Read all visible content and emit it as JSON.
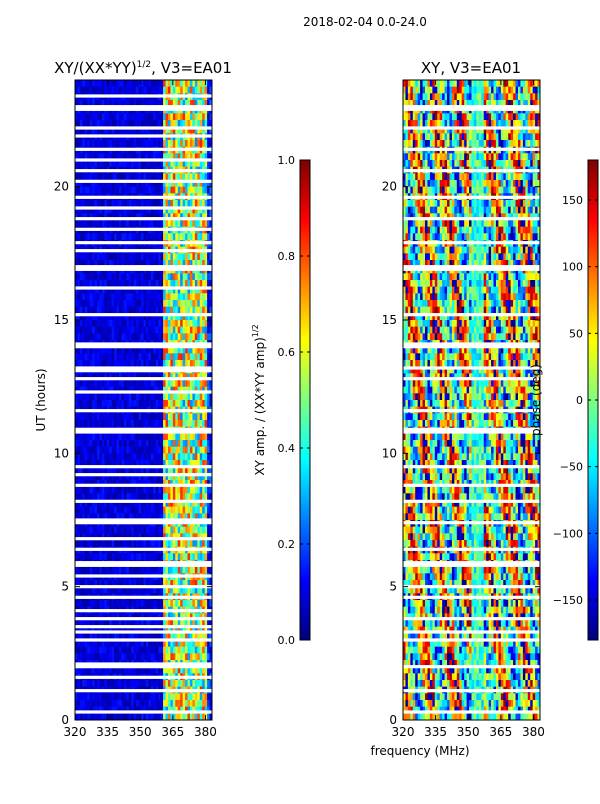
{
  "figure": {
    "suptitle": "2018-02-04 0.0-24.0",
    "shared_xlabel": "frequency (MHz)"
  },
  "colors": {
    "jet": [
      "#00007f",
      "#0000ff",
      "#007fff",
      "#00ffff",
      "#7fff7f",
      "#ffff00",
      "#ff7f00",
      "#ff0000",
      "#7f0000"
    ],
    "flag": "#ffffff",
    "axes": "#000000"
  },
  "chart_data": [
    {
      "type": "heatmap",
      "title": "XY/(XX*YY)^{1/2}, V3=EA01",
      "title_main": "XY/(XX*YY)",
      "title_sup": "1/2",
      "title_tail": ", V3=EA01",
      "xlabel": "frequency (MHz)",
      "ylabel": "UT (hours)",
      "xlim": [
        320,
        383
      ],
      "ylim": [
        0,
        24
      ],
      "xticks": [
        320,
        335,
        350,
        365,
        380
      ],
      "yticks": [
        0,
        5,
        10,
        15,
        20
      ],
      "colorbar": {
        "label": "XY amp. / (XX*YY amp)^{1/2}",
        "label_main": "XY amp. / (XX*YY amp)",
        "label_sup": "1/2",
        "range": [
          0.0,
          1.0
        ],
        "ticks": [
          "0.0",
          "0.2",
          "0.4",
          "0.6",
          "0.8",
          "1.0"
        ],
        "tick_values": [
          0.0,
          0.2,
          0.4,
          0.6,
          0.8,
          1.0
        ]
      },
      "pattern": "low amplitude (~0.05) below 360 MHz; moderate to high amplitude (0.3-0.8) between 360 and 380 MHz",
      "flagged_ut_hours": [
        0.3,
        1.1,
        1.6,
        2.0,
        2.1,
        3.0,
        3.3,
        3.5,
        3.8,
        4.1,
        4.6,
        5.0,
        5.4,
        5.8,
        5.9,
        6.4,
        6.8,
        7.4,
        7.5,
        8.2,
        8.8,
        9.2,
        9.5,
        10.8,
        10.9,
        11.6,
        12.3,
        12.8,
        13.1,
        13.2,
        14.0,
        14.1,
        15.2,
        16.2,
        16.9,
        17.0,
        17.6,
        17.9,
        18.4,
        18.8,
        19.2,
        19.6,
        20.2,
        20.6,
        21.0,
        21.4,
        21.9,
        22.2,
        22.9,
        23.0,
        23.4
      ],
      "panel_id": "amp"
    },
    {
      "type": "heatmap",
      "title": "XY, V3=EA01",
      "xlabel": "frequency (MHz)",
      "ylabel": "",
      "xlim": [
        320,
        383
      ],
      "ylim": [
        0,
        24
      ],
      "xticks": [
        320,
        335,
        350,
        365,
        380
      ],
      "yticks": [
        0,
        5,
        10,
        15,
        20
      ],
      "colorbar": {
        "label": "phase (deg)",
        "range": [
          -180,
          180
        ],
        "ticks": [
          "150",
          "100",
          "50",
          "0",
          "−50",
          "−100",
          "−150"
        ],
        "tick_values": [
          150,
          100,
          50,
          0,
          -50,
          -100,
          -150
        ]
      },
      "pattern": "full-range phase wraps across band; stronger structure between 325-340 MHz and 350-380 MHz",
      "flagged_ut_hours": [
        0.3,
        1.1,
        2.0,
        3.0,
        3.3,
        3.8,
        4.6,
        5.0,
        5.8,
        5.9,
        6.4,
        7.4,
        8.2,
        8.8,
        9.5,
        10.8,
        10.9,
        11.6,
        12.8,
        13.2,
        14.0,
        14.1,
        15.2,
        16.9,
        17.0,
        17.9,
        18.8,
        19.6,
        20.6,
        21.4,
        22.2,
        22.9,
        23.0
      ],
      "panel_id": "phase"
    }
  ]
}
